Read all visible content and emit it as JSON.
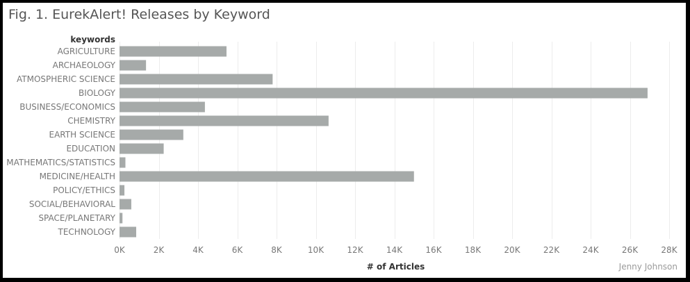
{
  "title": "Fig. 1. EurekAlert! Releases by Keyword",
  "credit": "Jenny Johnson",
  "colors": {
    "bar": "#a6aaa9",
    "gridline": "#ececec",
    "axis_text": "#777777",
    "header_text": "#333333"
  },
  "chart_data": {
    "type": "bar",
    "orientation": "horizontal",
    "title": "Fig. 1. EurekAlert! Releases by Keyword",
    "category_header": "keywords",
    "xlabel": "# of Articles",
    "categories": [
      "AGRICULTURE",
      "ARCHAEOLOGY",
      "ATMOSPHERIC SCIENCE",
      "BIOLOGY",
      "BUSINESS/ECONOMICS",
      "CHEMISTRY",
      "EARTH SCIENCE",
      "EDUCATION",
      "MATHEMATICS/STATISTICS",
      "MEDICINE/HEALTH",
      "POLICY/ETHICS",
      "SOCIAL/BEHAVIORAL",
      "SPACE/PLANETARY",
      "TECHNOLOGY"
    ],
    "values": [
      5450,
      1350,
      7800,
      26900,
      4350,
      10650,
      3250,
      2250,
      300,
      15000,
      250,
      600,
      150,
      850
    ],
    "xlim": [
      0,
      28000
    ],
    "xticks": [
      0,
      2000,
      4000,
      6000,
      8000,
      10000,
      12000,
      14000,
      16000,
      18000,
      20000,
      22000,
      24000,
      26000,
      28000
    ],
    "xtick_labels": [
      "0K",
      "2K",
      "4K",
      "6K",
      "8K",
      "10K",
      "12K",
      "14K",
      "16K",
      "18K",
      "20K",
      "22K",
      "24K",
      "26K",
      "28K"
    ],
    "grid": "vertical"
  }
}
